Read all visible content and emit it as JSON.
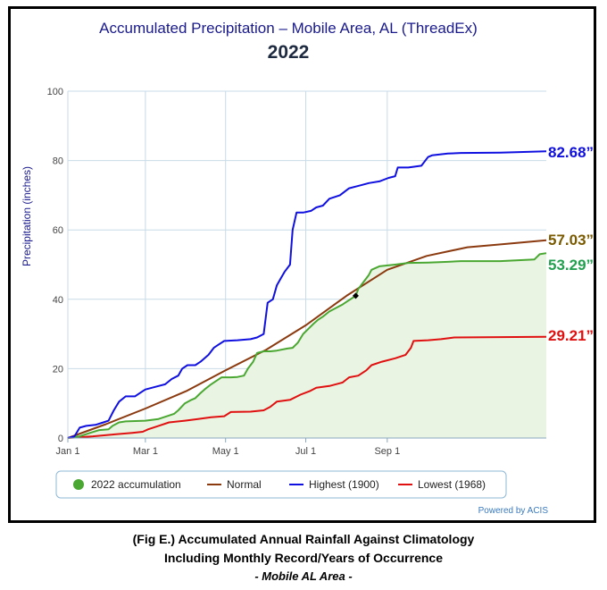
{
  "caption": {
    "line1": "(Fig E.) Accumulated Annual Rainfall Against  Climatology",
    "line2": "Including Monthly Record/Years of Occurrence",
    "line3": "- Mobile AL Area -"
  },
  "chart_data": {
    "type": "line",
    "title": "Accumulated Precipitation – Mobile Area, AL (ThreadEx)",
    "subtitle": "2022",
    "ylabel": "Precipitation (inches)",
    "xlabel": "",
    "ylim": [
      0,
      100
    ],
    "yticks": [
      0,
      20,
      40,
      60,
      80,
      100
    ],
    "x_domain_days": [
      1,
      365
    ],
    "xticks": [
      {
        "label": "Jan 1",
        "day": 1
      },
      {
        "label": "Mar 1",
        "day": 60
      },
      {
        "label": "May 1",
        "day": 121
      },
      {
        "label": "Jul 1",
        "day": 182
      },
      {
        "label": "Sep 1",
        "day": 244
      }
    ],
    "grid": true,
    "legend_position": "bottom",
    "credit": "Powered by ACIS",
    "colors": {
      "accum": "#4aa832",
      "accum_fill": "#eaf4e2",
      "normal": "#8b3a0f",
      "highest": "#1010e0",
      "lowest": "#e01010",
      "title": "#1a1a8c",
      "axis_label": "#1a1a8c",
      "label_highest": "#1010dd",
      "label_normal": "#7a5a00",
      "label_accum": "#22a050",
      "label_lowest": "#e01010",
      "grid": "#c8dbe8"
    },
    "series": [
      {
        "key": "accum",
        "name": "2022 accumulation",
        "end_label": "53.29”",
        "points": [
          [
            1,
            0
          ],
          [
            10,
            0.5
          ],
          [
            18,
            1.5
          ],
          [
            25,
            2.3
          ],
          [
            32,
            2.5
          ],
          [
            35,
            3.5
          ],
          [
            40,
            4.5
          ],
          [
            45,
            4.8
          ],
          [
            60,
            5.0
          ],
          [
            70,
            5.5
          ],
          [
            78,
            6.5
          ],
          [
            82,
            7.0
          ],
          [
            85,
            8.0
          ],
          [
            90,
            10.0
          ],
          [
            95,
            11.0
          ],
          [
            98,
            11.5
          ],
          [
            102,
            13.0
          ],
          [
            105,
            14.0
          ],
          [
            110,
            15.5
          ],
          [
            112,
            16.0
          ],
          [
            118,
            17.5
          ],
          [
            125,
            17.5
          ],
          [
            130,
            17.6
          ],
          [
            135,
            18.0
          ],
          [
            138,
            20.0
          ],
          [
            142,
            22.0
          ],
          [
            145,
            24.5
          ],
          [
            150,
            25.0
          ],
          [
            155,
            25.0
          ],
          [
            160,
            25.2
          ],
          [
            168,
            25.8
          ],
          [
            172,
            26.0
          ],
          [
            176,
            27.5
          ],
          [
            180,
            30.0
          ],
          [
            184,
            31.5
          ],
          [
            188,
            33.0
          ],
          [
            191,
            34.0
          ],
          [
            195,
            35.0
          ],
          [
            200,
            36.5
          ],
          [
            205,
            37.5
          ],
          [
            210,
            38.5
          ],
          [
            214,
            39.5
          ],
          [
            218,
            40.5
          ],
          [
            220,
            41.0
          ],
          [
            222,
            43.0
          ],
          [
            226,
            45.0
          ],
          [
            230,
            47.0
          ],
          [
            232,
            48.5
          ],
          [
            238,
            49.5
          ],
          [
            250,
            50.0
          ],
          [
            260,
            50.5
          ],
          [
            275,
            50.6
          ],
          [
            290,
            50.8
          ],
          [
            300,
            51.0
          ],
          [
            330,
            51.0
          ],
          [
            356,
            51.5
          ],
          [
            360,
            53.0
          ],
          [
            365,
            53.29
          ]
        ]
      },
      {
        "key": "normal",
        "name": "Normal",
        "end_label": "57.03”",
        "points": [
          [
            1,
            0
          ],
          [
            30,
            4.0
          ],
          [
            60,
            8.5
          ],
          [
            91,
            13.5
          ],
          [
            121,
            19.5
          ],
          [
            152,
            25.5
          ],
          [
            182,
            32.5
          ],
          [
            213,
            41.0
          ],
          [
            244,
            48.5
          ],
          [
            274,
            52.5
          ],
          [
            305,
            55.0
          ],
          [
            335,
            56.0
          ],
          [
            365,
            57.03
          ]
        ]
      },
      {
        "key": "highest",
        "name": "Highest (1900)",
        "end_label": "82.68”",
        "points": [
          [
            1,
            0
          ],
          [
            6,
            0.5
          ],
          [
            10,
            3.0
          ],
          [
            15,
            3.5
          ],
          [
            22,
            3.8
          ],
          [
            28,
            4.5
          ],
          [
            32,
            5.0
          ],
          [
            36,
            8.0
          ],
          [
            40,
            10.5
          ],
          [
            45,
            12.0
          ],
          [
            52,
            12.0
          ],
          [
            58,
            13.5
          ],
          [
            60,
            14.0
          ],
          [
            70,
            15.0
          ],
          [
            75,
            15.5
          ],
          [
            80,
            17.0
          ],
          [
            85,
            18.0
          ],
          [
            88,
            20.0
          ],
          [
            92,
            21.0
          ],
          [
            98,
            21.0
          ],
          [
            102,
            22.0
          ],
          [
            108,
            24.0
          ],
          [
            112,
            26.0
          ],
          [
            116,
            27.0
          ],
          [
            120,
            28.0
          ],
          [
            130,
            28.2
          ],
          [
            140,
            28.5
          ],
          [
            145,
            29.0
          ],
          [
            150,
            30.0
          ],
          [
            153,
            39.0
          ],
          [
            157,
            40.0
          ],
          [
            160,
            44.0
          ],
          [
            163,
            46.0
          ],
          [
            166,
            48.0
          ],
          [
            170,
            50.0
          ],
          [
            172,
            60.0
          ],
          [
            175,
            65.0
          ],
          [
            180,
            65.0
          ],
          [
            186,
            65.5
          ],
          [
            190,
            66.5
          ],
          [
            195,
            67.0
          ],
          [
            200,
            69.0
          ],
          [
            208,
            70.0
          ],
          [
            215,
            72.0
          ],
          [
            220,
            72.5
          ],
          [
            225,
            73.0
          ],
          [
            230,
            73.5
          ],
          [
            238,
            74.0
          ],
          [
            245,
            75.0
          ],
          [
            250,
            75.5
          ],
          [
            252,
            78.0
          ],
          [
            260,
            78.0
          ],
          [
            270,
            78.5
          ],
          [
            275,
            81.0
          ],
          [
            278,
            81.5
          ],
          [
            290,
            82.0
          ],
          [
            300,
            82.2
          ],
          [
            330,
            82.3
          ],
          [
            365,
            82.68
          ]
        ]
      },
      {
        "key": "lowest",
        "name": "Lowest (1968)",
        "end_label": "29.21”",
        "points": [
          [
            1,
            0
          ],
          [
            20,
            0.5
          ],
          [
            35,
            1.0
          ],
          [
            50,
            1.5
          ],
          [
            58,
            1.8
          ],
          [
            62,
            2.5
          ],
          [
            70,
            3.5
          ],
          [
            78,
            4.5
          ],
          [
            90,
            5.0
          ],
          [
            100,
            5.5
          ],
          [
            110,
            6.0
          ],
          [
            120,
            6.3
          ],
          [
            125,
            7.5
          ],
          [
            140,
            7.6
          ],
          [
            150,
            8.0
          ],
          [
            155,
            9.0
          ],
          [
            160,
            10.5
          ],
          [
            170,
            11.0
          ],
          [
            178,
            12.5
          ],
          [
            185,
            13.5
          ],
          [
            190,
            14.5
          ],
          [
            200,
            15.0
          ],
          [
            210,
            16.0
          ],
          [
            215,
            17.5
          ],
          [
            222,
            18.0
          ],
          [
            228,
            19.5
          ],
          [
            232,
            21.0
          ],
          [
            240,
            22.0
          ],
          [
            250,
            23.0
          ],
          [
            258,
            24.0
          ],
          [
            262,
            26.0
          ],
          [
            264,
            28.0
          ],
          [
            275,
            28.2
          ],
          [
            285,
            28.5
          ],
          [
            295,
            29.0
          ],
          [
            365,
            29.21
          ]
        ]
      }
    ],
    "marker": {
      "day": 220,
      "value": 41.0
    }
  }
}
